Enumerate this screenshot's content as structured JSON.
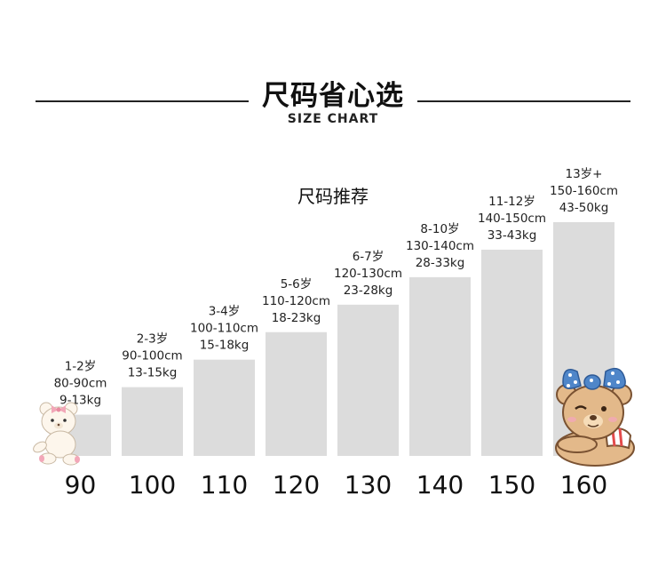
{
  "header": {
    "title": "尺码省心选",
    "subtitle": "SIZE CHART"
  },
  "recommend_label": "尺码推荐",
  "colors": {
    "bar": "#dcdcdc",
    "text": "#222222",
    "bear_pink_bow": "#f2a7b8",
    "bear_blue_bow": "#4f86c9"
  },
  "icons": [
    "white-teddy-bear-icon",
    "brown-teddy-bear-icon"
  ],
  "chart_data": {
    "type": "bar",
    "categories": [
      "90",
      "100",
      "110",
      "120",
      "130",
      "140",
      "150",
      "160"
    ],
    "values": [
      90,
      100,
      110,
      120,
      130,
      140,
      150,
      160
    ],
    "labels": [
      [
        "1-2岁",
        "80-90cm",
        "9-13kg"
      ],
      [
        "2-3岁",
        "90-100cm",
        "13-15kg"
      ],
      [
        "3-4岁",
        "100-110cm",
        "15-18kg"
      ],
      [
        "5-6岁",
        "110-120cm",
        "18-23kg"
      ],
      [
        "6-7岁",
        "120-130cm",
        "23-28kg"
      ],
      [
        "8-10岁",
        "130-140cm",
        "28-33kg"
      ],
      [
        "11-12岁",
        "140-150cm",
        "33-43kg"
      ],
      [
        "13岁+",
        "150-160cm",
        "43-50kg"
      ]
    ],
    "ylim": [
      75,
      160
    ],
    "grid": false,
    "legend": "none"
  }
}
